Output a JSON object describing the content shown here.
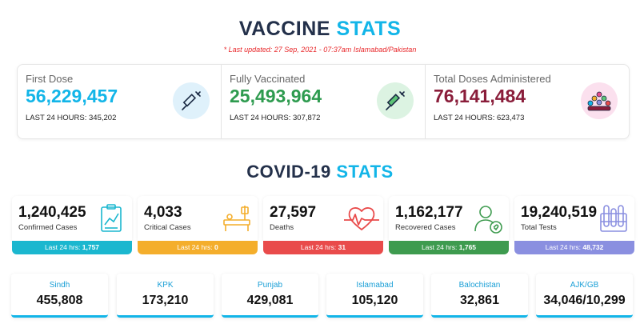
{
  "vaccine": {
    "title_dark": "VACCINE",
    "title_blue": "STATS",
    "last_updated": "* Last updated: 27 Sep, 2021 - 07:37am Islamabad/Pakistan",
    "cards": [
      {
        "label": "First Dose",
        "value": "56,229,457",
        "last24": "LAST 24 HOURS: 345,202",
        "color": "#12b5e8",
        "icon": "syringe-icon"
      },
      {
        "label": "Fully Vaccinated",
        "value": "25,493,964",
        "last24": "LAST 24 HOURS: 307,872",
        "color": "#2e9b4f",
        "icon": "syringe-icon"
      },
      {
        "label": "Total Doses Administered",
        "value": "76,141,484",
        "last24": "LAST 24 HOURS: 623,473",
        "color": "#8a1d3a",
        "icon": "crowd-icon"
      }
    ]
  },
  "covid": {
    "title_dark": "COVID-19",
    "title_blue": "STATS",
    "cards": [
      {
        "value": "1,240,425",
        "label": "Confirmed Cases",
        "bar_text": "Last 24 hrs:",
        "bar_value": "1,757",
        "bar_color": "#1bb7cf",
        "icon": "clipboard-chart-icon"
      },
      {
        "value": "4,033",
        "label": "Critical Cases",
        "bar_text": "Last 24 hrs:",
        "bar_value": "0",
        "bar_color": "#f4ae2c",
        "icon": "hospital-bed-icon"
      },
      {
        "value": "27,597",
        "label": "Deaths",
        "bar_text": "Last 24 hrs:",
        "bar_value": "31",
        "bar_color": "#e94b4b",
        "icon": "heartbeat-icon"
      },
      {
        "value": "1,162,177",
        "label": "Recovered Cases",
        "bar_text": "Last 24 hrs:",
        "bar_value": "1,765",
        "bar_color": "#3e9b4f",
        "icon": "recovered-person-icon"
      },
      {
        "value": "19,240,519",
        "label": "Total Tests",
        "bar_text": "Last 24 hrs:",
        "bar_value": "48,732",
        "bar_color": "#8a8fe0",
        "icon": "test-tubes-icon"
      }
    ]
  },
  "provinces": [
    {
      "name": "Sindh",
      "value": "455,808"
    },
    {
      "name": "KPK",
      "value": "173,210"
    },
    {
      "name": "Punjab",
      "value": "429,081"
    },
    {
      "name": "Islamabad",
      "value": "105,120"
    },
    {
      "name": "Balochistan",
      "value": "32,861"
    },
    {
      "name": "AJK/GB",
      "value": "34,046/10,299"
    }
  ]
}
